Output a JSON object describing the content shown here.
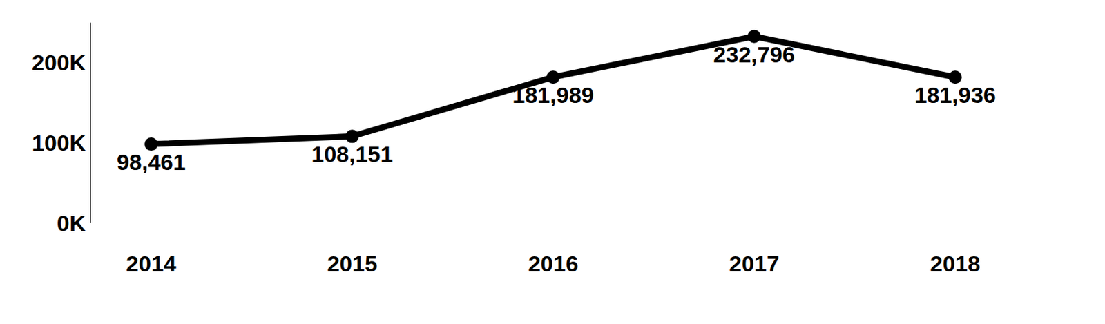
{
  "chart_data": {
    "type": "line",
    "categories": [
      "2014",
      "2015",
      "2016",
      "2017",
      "2018"
    ],
    "values": [
      98461,
      108151,
      181989,
      232796,
      181936
    ],
    "value_labels": [
      "98,461",
      "108,151",
      "181,989",
      "232,796",
      "181,936"
    ],
    "color": "#000000",
    "marker": "circle",
    "line_style": "solid",
    "data_labels": true,
    "grid": false,
    "ylim": [
      0,
      250000
    ],
    "yticks": [
      {
        "value": 0,
        "label": "0K"
      },
      {
        "value": 100000,
        "label": "100K"
      },
      {
        "value": 200000,
        "label": "200K"
      }
    ]
  }
}
